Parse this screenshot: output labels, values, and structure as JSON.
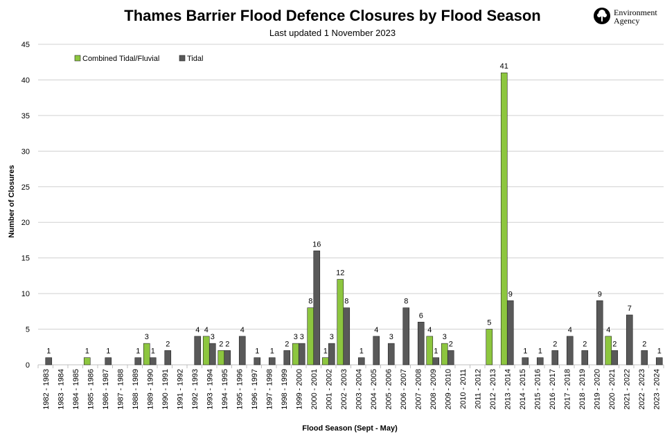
{
  "chart_data": {
    "type": "bar",
    "title": "Thames Barrier Flood Defence Closures by Flood Season",
    "subtitle": "Last updated  1 November 2023",
    "xlabel": "Flood Season (Sept -  May)",
    "ylabel": "Number of Closures",
    "ylim": [
      0,
      45
    ],
    "yticks": [
      0,
      5,
      10,
      15,
      20,
      25,
      30,
      35,
      40,
      45
    ],
    "grid": true,
    "legend_position": "top-left",
    "categories": [
      "1982 - 1983",
      "1983 - 1984",
      "1984 - 1985",
      "1985 - 1986",
      "1986 - 1987",
      "1987 - 1988",
      "1988 - 1989",
      "1989 - 1990",
      "1990 - 1991",
      "1991 - 1992",
      "1992 - 1993",
      "1993 - 1994",
      "1994 - 1995",
      "1995 - 1996",
      "1996 - 1997",
      "1997 - 1998",
      "1998 - 1999",
      "1999 - 2000",
      "2000 - 2001",
      "2001 - 2002",
      "2002 - 2003",
      "2003 - 2004",
      "2004 - 2005",
      "2005 - 2006",
      "2006 - 2007",
      "2007 - 2008",
      "2008 - 2009",
      "2009 - 2010",
      "2010 - 2011",
      "2011 - 2012",
      "2012 - 2013",
      "2013 - 2014",
      "2014 - 2015",
      "2015 - 2016",
      "2016 - 2017",
      "2017 - 2018",
      "2018 - 2019",
      "2019 - 2020",
      "2020 - 2021",
      "2021 - 2022",
      "2022 - 2023",
      "2023 - 2024"
    ],
    "series": [
      {
        "name": "Combined Tidal/Fluvial",
        "color": "#8dc63f",
        "values": [
          null,
          null,
          null,
          1,
          null,
          null,
          null,
          3,
          null,
          null,
          null,
          4,
          2,
          null,
          null,
          null,
          null,
          3,
          8,
          1,
          12,
          null,
          null,
          null,
          null,
          null,
          4,
          3,
          null,
          null,
          5,
          41,
          null,
          null,
          null,
          null,
          null,
          null,
          4,
          null,
          null,
          null
        ]
      },
      {
        "name": "Tidal",
        "color": "#595959",
        "values": [
          1,
          null,
          null,
          null,
          1,
          null,
          1,
          1,
          2,
          null,
          4,
          3,
          2,
          4,
          1,
          1,
          2,
          3,
          16,
          3,
          8,
          1,
          4,
          3,
          8,
          6,
          1,
          2,
          null,
          null,
          null,
          9,
          1,
          1,
          2,
          4,
          2,
          9,
          2,
          7,
          2,
          1
        ]
      }
    ]
  },
  "logo": {
    "line1": "Environment",
    "line2": "Agency",
    "icon": "environment-agency-tree-icon"
  }
}
